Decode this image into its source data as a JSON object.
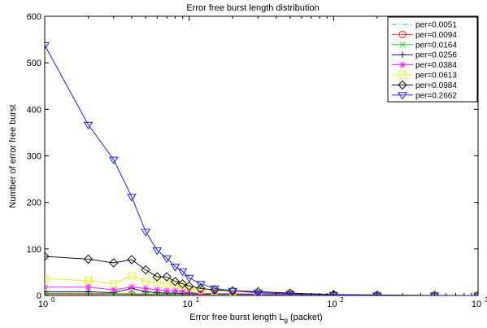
{
  "chart_data": {
    "type": "line",
    "title": "Error free burst length distribution",
    "xlabel": {
      "main": "Error free burst length L",
      "subscript": "g",
      "suffix": " (packet)"
    },
    "ylabel": "Number of error free burst",
    "xscale": "log",
    "xlim": [
      1,
      1000
    ],
    "ylim": [
      0,
      600
    ],
    "yticks": [
      0,
      100,
      200,
      300,
      400,
      500,
      600
    ],
    "xticks": [
      {
        "base": "10",
        "exp": "0",
        "value": 1
      },
      {
        "base": "10",
        "exp": "1",
        "value": 10
      },
      {
        "base": "10",
        "exp": "2",
        "value": 100
      },
      {
        "base": "10",
        "exp": "3",
        "value": 1000
      }
    ],
    "legend_position": "top-right",
    "grid": false,
    "series": [
      {
        "name": "per=0.0051",
        "color": "#00bfbf",
        "marker": "none",
        "dash": "6,3,1.5,3",
        "x": [
          1,
          2,
          3,
          4,
          5,
          6,
          7,
          8,
          9,
          10,
          12,
          15,
          20,
          30,
          50,
          100,
          200,
          500,
          1000
        ],
        "y": [
          4,
          3,
          3,
          2.5,
          2,
          2,
          2,
          1.5,
          1.5,
          1,
          1,
          1,
          1,
          0.5,
          0.5,
          0,
          0,
          0,
          0
        ]
      },
      {
        "name": "per=0.0094",
        "color": "#ff2a2a",
        "marker": "circle",
        "x": [
          1,
          2,
          3,
          4,
          5,
          6,
          7,
          8,
          9,
          10,
          12,
          15,
          20,
          30,
          50,
          100,
          200,
          500,
          1000
        ],
        "y": [
          3,
          3,
          3,
          2.5,
          2,
          2,
          2,
          2,
          1.5,
          1.5,
          1,
          1,
          1,
          1,
          0.5,
          0,
          0,
          0,
          0
        ]
      },
      {
        "name": "per=0.0164",
        "color": "#22cc22",
        "marker": "x",
        "x": [
          1,
          2,
          3,
          4,
          5,
          6,
          7,
          8,
          9,
          10,
          12,
          15,
          20,
          30,
          50,
          100,
          200,
          500,
          1000
        ],
        "y": [
          5,
          5,
          4,
          4,
          3,
          3,
          3,
          2,
          2,
          2,
          2,
          1,
          1,
          1,
          1,
          0,
          0,
          0,
          0
        ]
      },
      {
        "name": "per=0.0256",
        "color": "#1a1a66",
        "marker": "plus",
        "x": [
          1,
          2,
          3,
          4,
          5,
          6,
          7,
          8,
          9,
          10,
          12,
          15,
          20,
          30,
          50,
          100,
          200,
          500,
          1000
        ],
        "y": [
          8,
          8,
          6,
          15,
          8,
          6,
          5,
          5,
          4,
          4,
          3,
          3,
          2,
          2,
          1,
          1,
          0,
          0,
          0
        ]
      },
      {
        "name": "per=0.0384",
        "color": "#ff22ff",
        "marker": "star",
        "x": [
          1,
          2,
          3,
          4,
          5,
          6,
          7,
          8,
          9,
          10,
          12,
          15,
          20,
          30,
          50,
          100,
          200,
          500,
          1000
        ],
        "y": [
          18,
          18,
          12,
          18,
          15,
          12,
          10,
          10,
          8,
          6,
          5,
          4,
          4,
          3,
          2,
          1,
          0,
          0,
          0
        ]
      },
      {
        "name": "per=0.0613",
        "color": "#eeee22",
        "marker": "square",
        "x": [
          1,
          2,
          3,
          4,
          5,
          6,
          7,
          8,
          9,
          10,
          12,
          15,
          20,
          30,
          50,
          100,
          200,
          500,
          1000
        ],
        "y": [
          36,
          32,
          25,
          42,
          30,
          28,
          26,
          24,
          20,
          15,
          12,
          10,
          8,
          6,
          4,
          2,
          1,
          0,
          0
        ]
      },
      {
        "name": "per=0.0984",
        "color": "#111111",
        "marker": "diamond",
        "x": [
          1,
          2,
          3,
          4,
          5,
          6,
          7,
          8,
          9,
          10,
          12,
          15,
          20,
          30,
          50,
          100,
          200,
          500,
          1000
        ],
        "y": [
          84,
          78,
          70,
          77,
          55,
          40,
          40,
          30,
          25,
          20,
          15,
          12,
          10,
          8,
          5,
          2,
          1,
          0,
          0
        ]
      },
      {
        "name": "per=0.2662",
        "color": "#2222dd",
        "marker": "triangle-down",
        "x": [
          1,
          2,
          3,
          4,
          5,
          6,
          7,
          8,
          9,
          10,
          12,
          15,
          20,
          30,
          50,
          100,
          200,
          500,
          1000
        ],
        "y": [
          538,
          367,
          292,
          212,
          137,
          97,
          80,
          62,
          52,
          38,
          25,
          15,
          10,
          6,
          3,
          1,
          0,
          0,
          0
        ]
      }
    ]
  }
}
